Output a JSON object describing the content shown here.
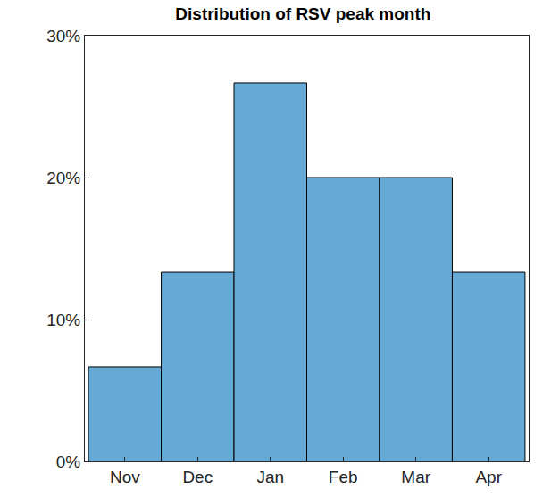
{
  "chart_data": {
    "type": "bar",
    "title": "Distribution of RSV peak month",
    "categories": [
      "Nov",
      "Dec",
      "Jan",
      "Feb",
      "Mar",
      "Apr"
    ],
    "values": [
      6.67,
      13.33,
      26.67,
      20,
      20,
      13.33
    ],
    "color": "#65a9d7",
    "ylim": [
      0,
      30
    ],
    "yticks": [
      {
        "value": 0,
        "label": "0%"
      },
      {
        "value": 10,
        "label": "10%"
      },
      {
        "value": 20,
        "label": "20%"
      },
      {
        "value": 30,
        "label": "30%"
      }
    ],
    "grid": false
  }
}
